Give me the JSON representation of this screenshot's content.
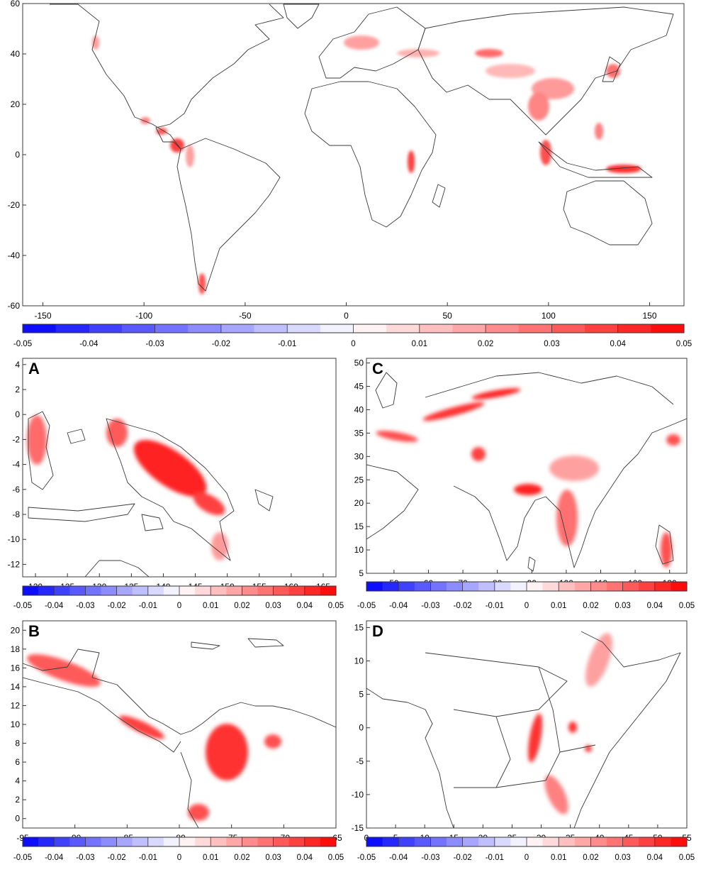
{
  "colors": {
    "negative_end": "#0000ff",
    "zero": "#ffffff",
    "positive_end": "#ff0000",
    "boundary_line": "#3a3a3a"
  },
  "colorbar": {
    "min": -0.05,
    "max": 0.05,
    "steps": 20,
    "ticks": [
      "-0.05",
      "-0.04",
      "-0.03",
      "-0.02",
      "-0.01",
      "0",
      "0.01",
      "0.02",
      "0.03",
      "0.04",
      "0.05"
    ]
  },
  "panels": {
    "world": {
      "label": "",
      "x_ticks": [
        "-150",
        "-100",
        "-50",
        "0",
        "50",
        "100",
        "150"
      ],
      "y_ticks": [
        "60",
        "40",
        "20",
        "0",
        "-20",
        "-40",
        "-60"
      ]
    },
    "A": {
      "label": "A",
      "x_ticks": [
        "120",
        "125",
        "130",
        "135",
        "140",
        "145",
        "150",
        "155",
        "160",
        "165"
      ],
      "y_ticks": [
        "4",
        "2",
        "0",
        "-2",
        "-4",
        "-6",
        "-8",
        "-10",
        "-12"
      ]
    },
    "B": {
      "label": "B",
      "x_ticks": [
        "-95",
        "-90",
        "-85",
        "-80",
        "-75",
        "-70",
        "-65"
      ],
      "y_ticks": [
        "20",
        "18",
        "16",
        "14",
        "12",
        "10",
        "8",
        "6",
        "4",
        "2",
        "0"
      ]
    },
    "C": {
      "label": "C",
      "x_ticks": [
        "50",
        "60",
        "70",
        "80",
        "90",
        "100",
        "110",
        "120",
        "130"
      ],
      "y_ticks": [
        "50",
        "45",
        "40",
        "35",
        "30",
        "25",
        "20",
        "15",
        "10",
        "5"
      ]
    },
    "D": {
      "label": "D",
      "x_ticks": [
        "0",
        "5",
        "10",
        "15",
        "20",
        "25",
        "30",
        "35",
        "40",
        "45",
        "50",
        "55"
      ],
      "y_ticks": [
        "15",
        "10",
        "5",
        "0",
        "-5",
        "-10",
        "-15"
      ]
    }
  }
}
